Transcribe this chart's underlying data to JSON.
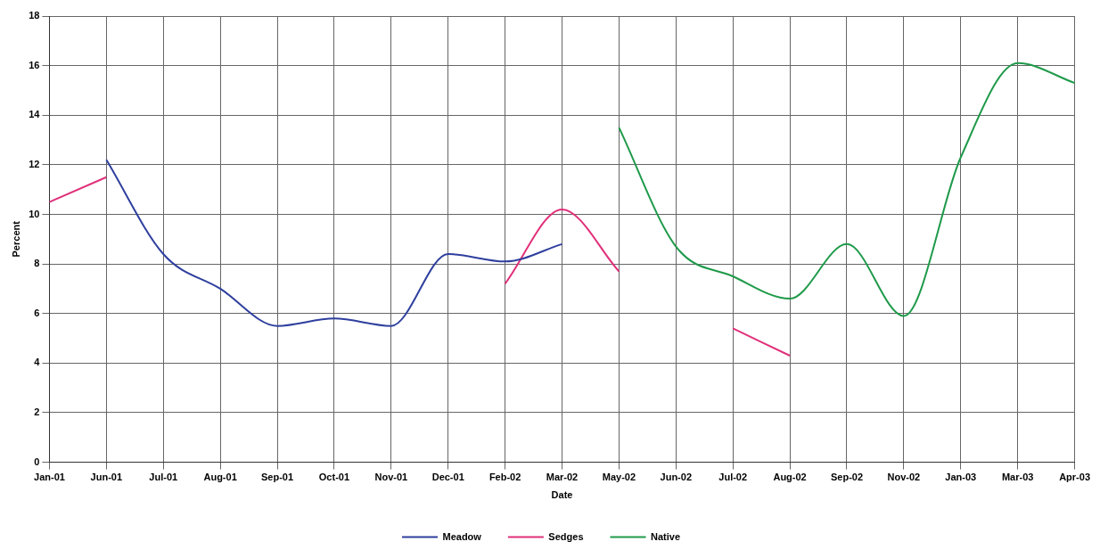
{
  "chart_data": {
    "type": "line",
    "xlabel": "Date",
    "ylabel": "Percent",
    "categories": [
      "Jan-01",
      "Jun-01",
      "Jul-01",
      "Aug-01",
      "Sep-01",
      "Oct-01",
      "Nov-01",
      "Dec-01",
      "Feb-02",
      "Mar-02",
      "May-02",
      "Jun-02",
      "Jul-02",
      "Aug-02",
      "Sep-02",
      "Nov-02",
      "Jan-03",
      "Mar-03",
      "Apr-03"
    ],
    "series": [
      {
        "name": "Meadow",
        "color": "#2e3f9e",
        "values": [
          null,
          12.2,
          8.4,
          7.0,
          5.5,
          5.8,
          5.5,
          8.4,
          8.1,
          8.8,
          null,
          null,
          null,
          null,
          null,
          null,
          null,
          null,
          null
        ]
      },
      {
        "name": "Sedges",
        "color": "#e0307a",
        "values": [
          10.5,
          11.5,
          null,
          null,
          null,
          null,
          null,
          null,
          7.2,
          10.2,
          7.7,
          null,
          5.4,
          4.3,
          null,
          null,
          null,
          null,
          null
        ]
      },
      {
        "name": "Native",
        "color": "#1f9a4a",
        "values": [
          null,
          null,
          null,
          null,
          null,
          null,
          null,
          null,
          null,
          null,
          13.5,
          8.7,
          7.5,
          6.6,
          8.8,
          5.9,
          12.3,
          16.1,
          15.3
        ]
      }
    ],
    "ylim": [
      0,
      18
    ],
    "yticks": [
      0,
      2,
      4,
      6,
      8,
      10,
      12,
      14,
      16,
      18
    ],
    "grid": true,
    "legend": "bottom",
    "marker": "none",
    "line_style": "solid"
  }
}
